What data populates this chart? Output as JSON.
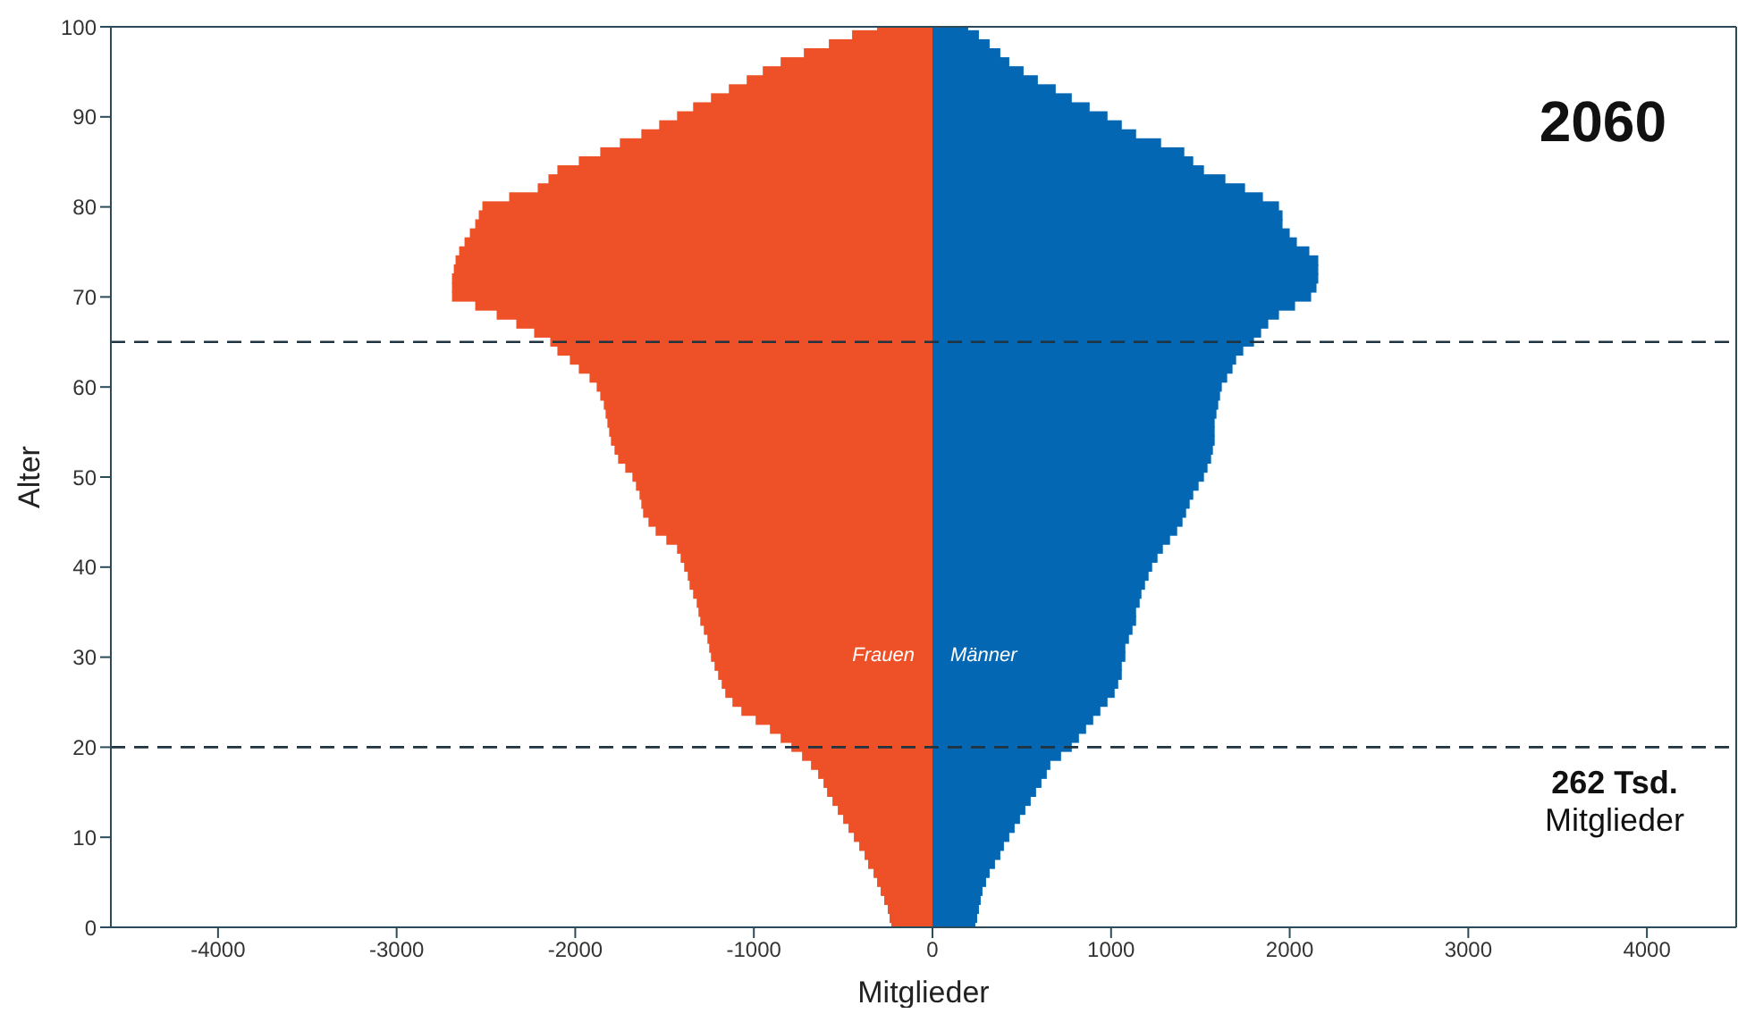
{
  "chart_data": {
    "type": "bar",
    "orientation": "horizontal",
    "stacked": true,
    "xlabel": "Mitglieder",
    "ylabel": "Alter",
    "annotations": [
      "2060",
      "262 Tsd.",
      "Mitglieder"
    ],
    "x": [
      0,
      1,
      2,
      3,
      4,
      5,
      6,
      7,
      8,
      9,
      10,
      11,
      12,
      13,
      14,
      15,
      16,
      17,
      18,
      19,
      20,
      21,
      22,
      23,
      24,
      25,
      26,
      27,
      28,
      29,
      30,
      31,
      32,
      33,
      34,
      35,
      36,
      37,
      38,
      39,
      40,
      41,
      42,
      43,
      44,
      45,
      46,
      47,
      48,
      49,
      50,
      51,
      52,
      53,
      54,
      55,
      56,
      57,
      58,
      59,
      60,
      61,
      62,
      63,
      64,
      65,
      66,
      67,
      68,
      69,
      70,
      71,
      72,
      73,
      74,
      75,
      76,
      77,
      78,
      79,
      80,
      81,
      82,
      83,
      84,
      85,
      86,
      87,
      88,
      89,
      90,
      91,
      92,
      93,
      94,
      95,
      96,
      97,
      98,
      99,
      100
    ],
    "series": [
      {
        "name": "Frauen",
        "color": "#ee5027",
        "values": [
          -230,
          -240,
          -250,
          -270,
          -290,
          -310,
          -330,
          -360,
          -380,
          -410,
          -440,
          -470,
          -500,
          -530,
          -560,
          -590,
          -610,
          -640,
          -680,
          -730,
          -790,
          -850,
          -910,
          -990,
          -1070,
          -1120,
          -1160,
          -1180,
          -1200,
          -1220,
          -1240,
          -1250,
          -1260,
          -1280,
          -1300,
          -1310,
          -1320,
          -1340,
          -1360,
          -1370,
          -1390,
          -1410,
          -1430,
          -1490,
          -1550,
          -1590,
          -1620,
          -1630,
          -1640,
          -1660,
          -1680,
          -1720,
          -1760,
          -1780,
          -1800,
          -1810,
          -1820,
          -1830,
          -1840,
          -1860,
          -1880,
          -1920,
          -1980,
          -2030,
          -2100,
          -2140,
          -2230,
          -2330,
          -2440,
          -2560,
          -2690,
          -2690,
          -2690,
          -2680,
          -2670,
          -2650,
          -2620,
          -2590,
          -2560,
          -2540,
          -2520,
          -2370,
          -2210,
          -2150,
          -2100,
          -1980,
          -1860,
          -1750,
          -1630,
          -1530,
          -1430,
          -1340,
          -1240,
          -1140,
          -1040,
          -950,
          -850,
          -720,
          -580,
          -450,
          -310
        ]
      },
      {
        "name": "Männer",
        "color": "#0467b3",
        "values": [
          240,
          250,
          260,
          270,
          280,
          300,
          320,
          350,
          380,
          400,
          430,
          460,
          490,
          520,
          550,
          580,
          610,
          640,
          660,
          720,
          780,
          820,
          860,
          900,
          940,
          980,
          1020,
          1040,
          1060,
          1060,
          1080,
          1080,
          1100,
          1120,
          1140,
          1140,
          1160,
          1170,
          1190,
          1210,
          1230,
          1260,
          1290,
          1330,
          1370,
          1400,
          1420,
          1440,
          1460,
          1490,
          1520,
          1540,
          1560,
          1570,
          1580,
          1580,
          1580,
          1590,
          1600,
          1610,
          1620,
          1650,
          1680,
          1700,
          1740,
          1800,
          1840,
          1880,
          1940,
          2030,
          2120,
          2150,
          2160,
          2160,
          2160,
          2110,
          2040,
          2000,
          1960,
          1960,
          1940,
          1850,
          1750,
          1640,
          1520,
          1460,
          1410,
          1280,
          1140,
          1060,
          980,
          880,
          780,
          690,
          590,
          510,
          430,
          380,
          320,
          260,
          200
        ]
      }
    ],
    "xlim": [
      -4600,
      4500
    ],
    "xticks": [
      -4000,
      -3000,
      -2000,
      -1000,
      0,
      1000,
      2000,
      3000,
      4000
    ],
    "ylim": [
      0,
      100
    ],
    "yticks": [
      0,
      10,
      20,
      30,
      40,
      50,
      60,
      70,
      80,
      90,
      100
    ],
    "ref_lines": [
      {
        "axis": "y",
        "value": 65,
        "color": "#1f3340",
        "line_style": "dashed"
      },
      {
        "axis": "y",
        "value": 20,
        "color": "#1f3340",
        "line_style": "dashed"
      }
    ]
  }
}
